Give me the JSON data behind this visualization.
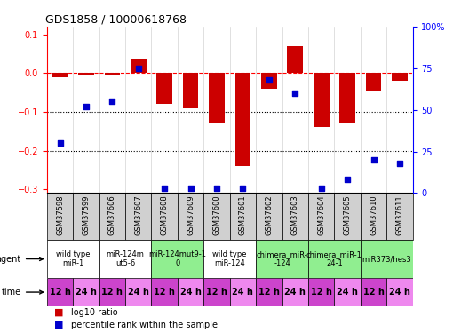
{
  "title": "GDS1858 / 10000618768",
  "samples": [
    "GSM37598",
    "GSM37599",
    "GSM37606",
    "GSM37607",
    "GSM37608",
    "GSM37609",
    "GSM37600",
    "GSM37601",
    "GSM37602",
    "GSM37603",
    "GSM37604",
    "GSM37605",
    "GSM37610",
    "GSM37611"
  ],
  "log10_ratio": [
    -0.01,
    -0.005,
    -0.005,
    0.035,
    -0.08,
    -0.09,
    -0.13,
    -0.24,
    -0.04,
    0.07,
    -0.14,
    -0.13,
    -0.045,
    -0.02
  ],
  "percentile_rank": [
    30,
    52,
    55,
    75,
    3,
    3,
    3,
    3,
    68,
    60,
    3,
    8,
    20,
    18
  ],
  "ylim_left": [
    -0.31,
    0.12
  ],
  "ylim_right": [
    0,
    100
  ],
  "yticks_left": [
    0.1,
    0.0,
    -0.1,
    -0.2,
    -0.3
  ],
  "yticks_right": [
    100,
    75,
    50,
    25,
    0
  ],
  "agent_groups": [
    {
      "label": "wild type\nmiR-1",
      "start": 0,
      "end": 2,
      "color": "#ffffff"
    },
    {
      "label": "miR-124m\nut5-6",
      "start": 2,
      "end": 4,
      "color": "#ffffff"
    },
    {
      "label": "miR-124mut9-1\n0",
      "start": 4,
      "end": 6,
      "color": "#90ee90"
    },
    {
      "label": "wild type\nmiR-124",
      "start": 6,
      "end": 8,
      "color": "#ffffff"
    },
    {
      "label": "chimera_miR-\n-124",
      "start": 8,
      "end": 10,
      "color": "#90ee90"
    },
    {
      "label": "chimera_miR-1\n24-1",
      "start": 10,
      "end": 12,
      "color": "#90ee90"
    },
    {
      "label": "miR373/hes3",
      "start": 12,
      "end": 14,
      "color": "#90ee90"
    }
  ],
  "time_labels": [
    "12 h",
    "24 h",
    "12 h",
    "24 h",
    "12 h",
    "24 h",
    "12 h",
    "24 h",
    "12 h",
    "24 h",
    "12 h",
    "24 h",
    "12 h",
    "24 h"
  ],
  "bar_color": "#cc0000",
  "dot_color": "#0000cc",
  "bar_width": 0.6,
  "legend_items": [
    "log10 ratio",
    "percentile rank within the sample"
  ],
  "bg_color": "#f0f0f0",
  "time_color_odd": "#cc44cc",
  "time_color_even": "#ee88ee",
  "label_fontsize": 7,
  "tick_fontsize": 7,
  "sample_fontsize": 6,
  "agent_fontsize": 6,
  "time_fontsize": 7
}
